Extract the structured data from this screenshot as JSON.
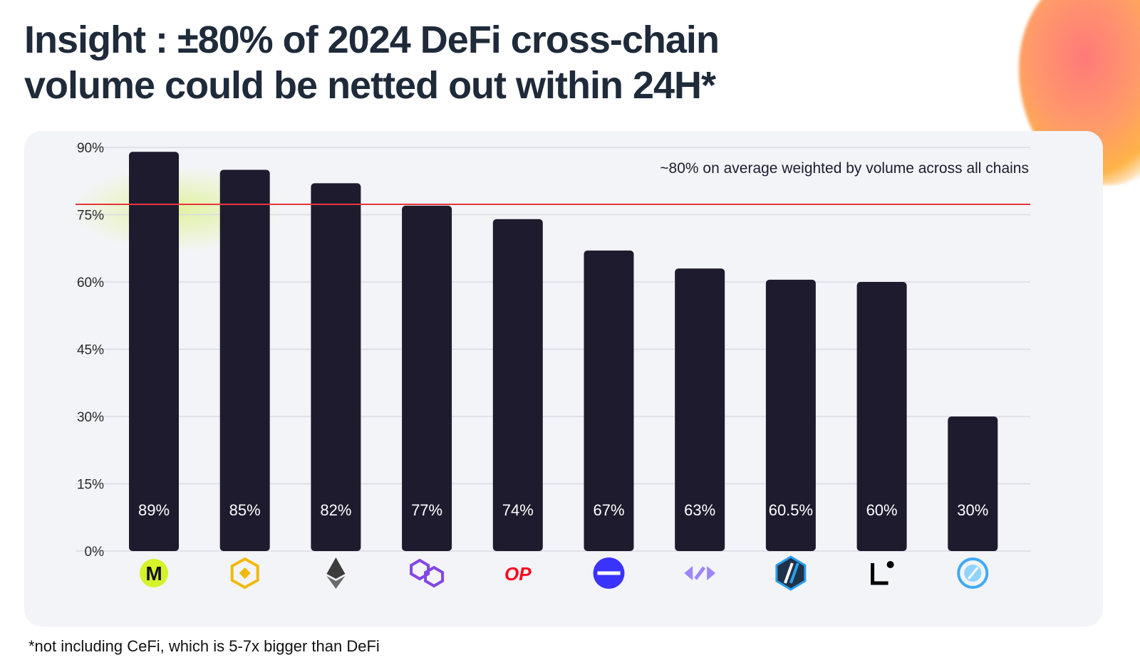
{
  "title_line1": "Insight : ±80% of 2024 DeFi cross-chain",
  "title_line2": "volume could be netted out within 24H*",
  "footnote": "*not including CeFi, which is 5-7x bigger than DeFi",
  "chart_data": {
    "type": "bar",
    "title": "",
    "xlabel": "",
    "ylabel": "",
    "ylim": [
      0,
      90
    ],
    "yticks": [
      "0%",
      "15%",
      "30%",
      "45%",
      "60%",
      "75%",
      "90%"
    ],
    "ytick_values": [
      0,
      15,
      30,
      45,
      60,
      75,
      90
    ],
    "grid": true,
    "categories_icons": [
      "mantle-icon",
      "bnb-chain-icon",
      "ethereum-icon",
      "polygon-icon",
      "optimism-icon",
      "base-icon",
      "cross-arrows-icon",
      "arbitrum-icon",
      "linea-icon",
      "chain-leaf-icon"
    ],
    "values": [
      89,
      85,
      82,
      77,
      74,
      67,
      63,
      60.5,
      60,
      30
    ],
    "data_labels": [
      "89%",
      "85%",
      "82%",
      "77%",
      "74%",
      "67%",
      "63%",
      "60.5%",
      "60%",
      "30%"
    ],
    "reference_line": {
      "value": 80,
      "color": "#e8363c",
      "label": "~80% on average weighted by volume across all chains"
    },
    "bar_color": "#1f1b2e",
    "icon_text_op": "OP",
    "icon_text_m": "M"
  }
}
